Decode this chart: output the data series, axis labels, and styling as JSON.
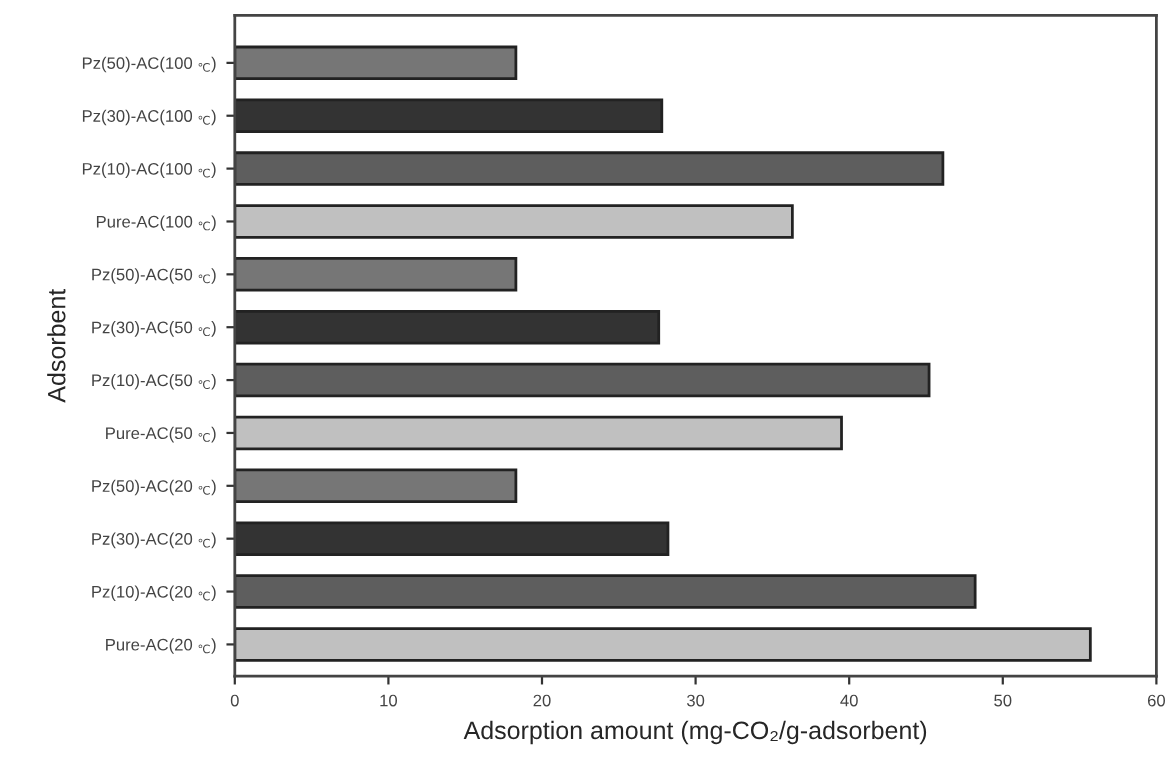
{
  "chart_data": {
    "type": "bar",
    "orientation": "horizontal",
    "xlabel": "Adsorption amount (mg-CO₂/g-adsorbent)",
    "ylabel": "Adsorbent",
    "categories": [
      "Pz(50)-AC(100 $_{℃}$)",
      "Pz(30)-AC(100 $_{℃}$)",
      "Pz(10)-AC(100 $_{℃}$)",
      "Pure-AC(100 $_{℃}$)",
      "Pz(50)-AC(50 $_{℃}$)",
      "Pz(30)-AC(50 $_{℃}$)",
      "Pz(10)-AC(50 $_{℃}$)",
      "Pure-AC(50 $_{℃}$)",
      "Pz(50)-AC(20 $_{℃}$)",
      "Pz(30)-AC(20 $_{℃}$)",
      "Pz(10)-AC(20 $_{℃}$)",
      "Pure-AC(20 $_{℃}$)"
    ],
    "values": [
      18.3,
      27.8,
      46.1,
      36.3,
      18.3,
      27.6,
      45.2,
      39.5,
      18.3,
      28.2,
      48.2,
      55.7
    ],
    "colors": [
      "#767676",
      "#333333",
      "#5e5e5e",
      "#c0c0c0",
      "#767676",
      "#333333",
      "#5e5e5e",
      "#c0c0c0",
      "#767676",
      "#333333",
      "#5e5e5e",
      "#c0c0c0"
    ],
    "xlim": [
      0,
      60
    ],
    "xticks": [
      0,
      10,
      20,
      30,
      40,
      50,
      60
    ],
    "grid": false
  }
}
